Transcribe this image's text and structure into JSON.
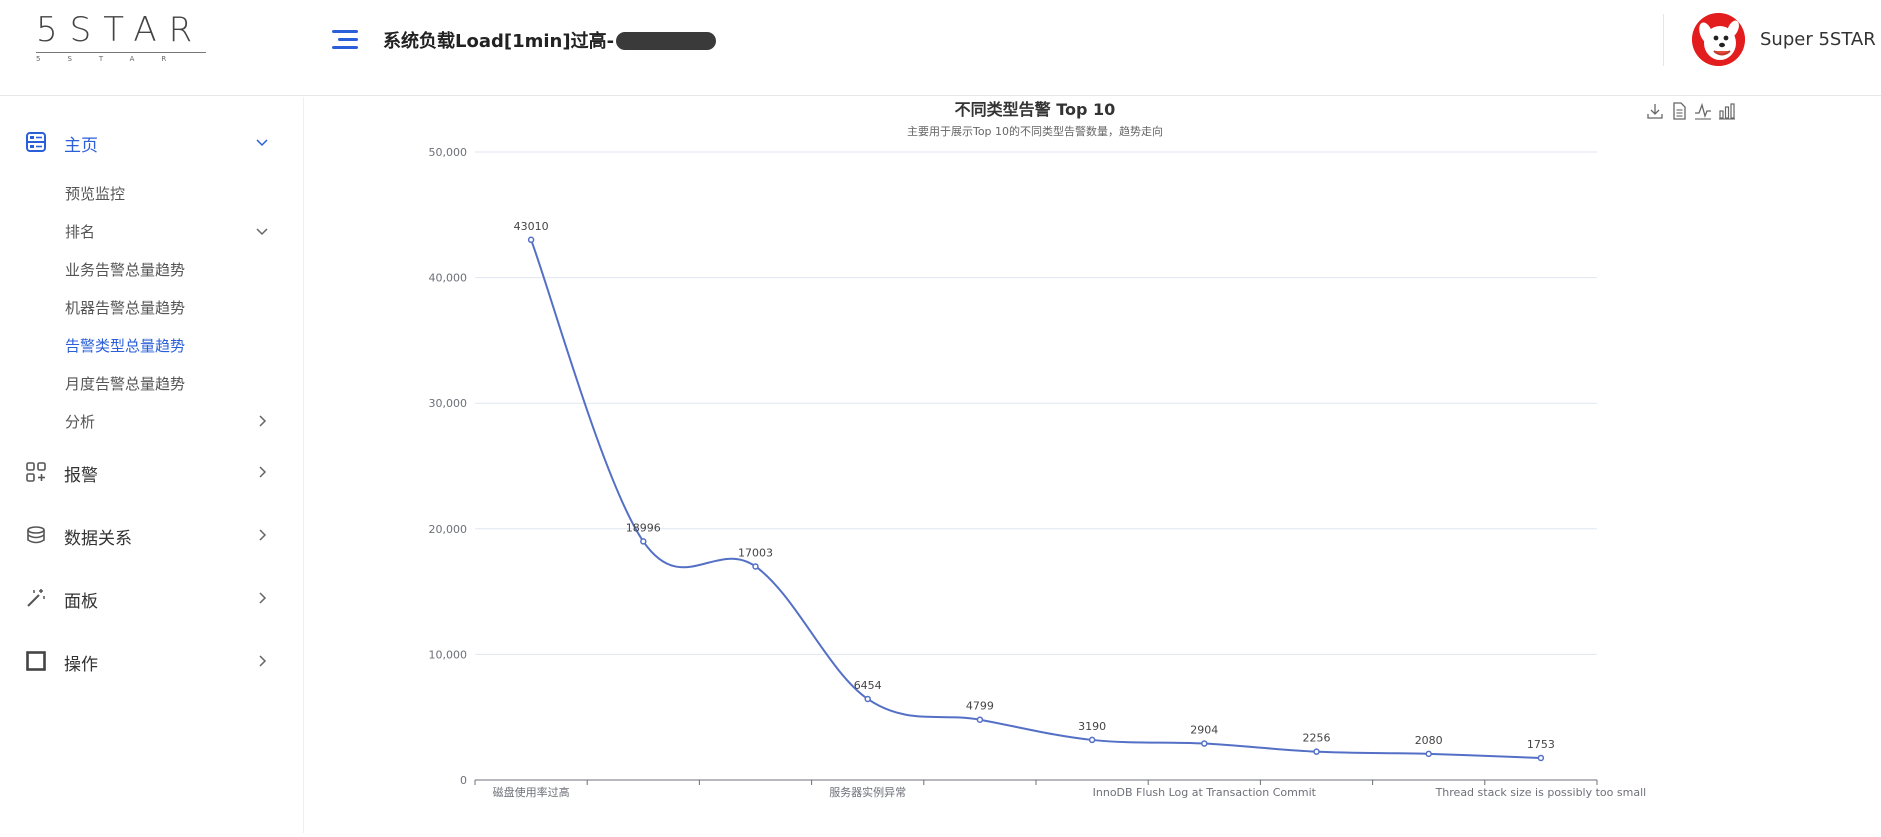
{
  "app": {
    "logo_text": "5STAR",
    "logo_sub": "5STAR",
    "page_title": "系统负载Load[1min]过高-",
    "user_name": "Super 5STAR"
  },
  "sidebar": {
    "home": {
      "label": "主页"
    },
    "sub": [
      {
        "label": "预览监控"
      },
      {
        "label": "排名"
      },
      {
        "label": "业务告警总量趋势"
      },
      {
        "label": "机器告警总量趋势"
      },
      {
        "label": "告警类型总量趋势"
      },
      {
        "label": "月度告警总量趋势"
      },
      {
        "label": "分析"
      }
    ],
    "items": [
      {
        "label": "报警"
      },
      {
        "label": "数据关系"
      },
      {
        "label": "面板"
      },
      {
        "label": "操作"
      }
    ]
  },
  "colors": {
    "accent": "#2b5fd9",
    "line": "#5470c6",
    "avatar_bg": "#e31d1d"
  },
  "chart_data": {
    "type": "line",
    "title": "不同类型告警 Top 10",
    "subtitle": "主要用于展示Top 10的不同类型告警数量，趋势走向",
    "categories": [
      "磁盘使用率过高",
      "",
      "",
      "服务器实例异常",
      "",
      "",
      "InnoDB Flush Log at Transaction Commit",
      "",
      "",
      "Thread stack size is possibly too small"
    ],
    "shown_x_labels": [
      "磁盘使用率过高",
      "服务器实例异常",
      "InnoDB Flush Log at Transaction Commit",
      "Thread stack size is possibly too small"
    ],
    "values": [
      43010,
      18996,
      17003,
      6454,
      4799,
      3190,
      2904,
      2256,
      2080,
      1753
    ],
    "ylim": [
      0,
      50000
    ],
    "yticks": [
      "0",
      "10,000",
      "20,000",
      "30,000",
      "40,000",
      "50,000"
    ],
    "grid": true,
    "smooth": true
  }
}
